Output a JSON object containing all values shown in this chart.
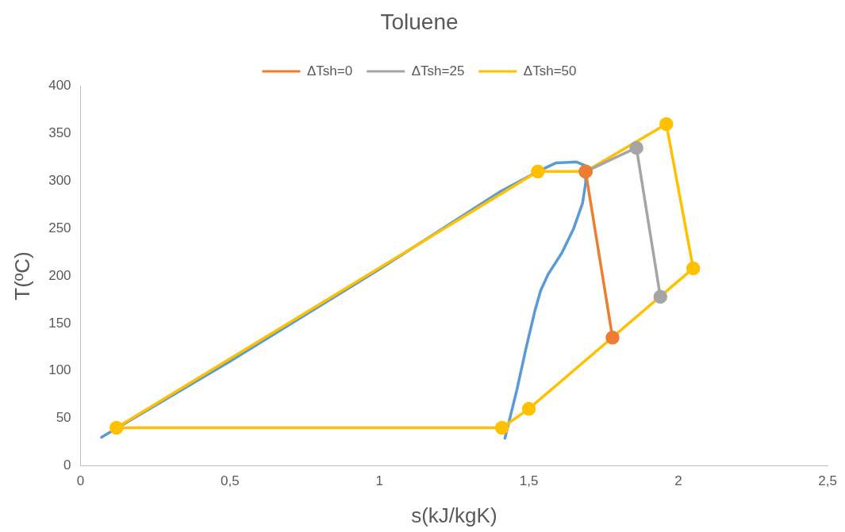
{
  "chart_data": {
    "type": "line",
    "title": "Toluene",
    "xlabel": "s(kJ/kgK)",
    "ylabel": "T(ºC)",
    "xlim": [
      0,
      2.5
    ],
    "xticks": [
      0,
      {
        "value": 0.5,
        "label": "0,5"
      },
      1,
      {
        "value": 1.5,
        "label": "1,5"
      },
      2,
      {
        "value": 2.5,
        "label": "2,5"
      }
    ],
    "ylim": [
      0,
      400
    ],
    "yticks": [
      0,
      50,
      100,
      150,
      200,
      250,
      300,
      350,
      400
    ],
    "grid": false,
    "legend": "top",
    "marker": "circle",
    "line_style": "solid",
    "series": [
      {
        "name": "ΔTsh=0",
        "color": "#ed7d31",
        "x": [
          1.69,
          1.78
        ],
        "values": [
          310,
          135
        ]
      },
      {
        "name": "ΔTsh=25",
        "color": "#a5a5a5",
        "x": [
          1.69,
          1.86,
          1.94
        ],
        "values": [
          310,
          335,
          178
        ]
      },
      {
        "name": "ΔTsh=50",
        "color": "#ffc000",
        "x": [
          1.5,
          1.41,
          0.12,
          1.53,
          1.69,
          1.96,
          2.05
        ],
        "values": [
          60,
          40,
          40,
          310,
          310,
          360,
          208
        ]
      },
      {
        "color": "#ffc000",
        "marker": "none",
        "x": [
          2.05,
          1.5
        ],
        "values": [
          208,
          60
        ]
      },
      {
        "color": "#5b9bd5",
        "marker": "none",
        "x": [
          0.07,
          0.5,
          1.0,
          1.4,
          1.53,
          1.59,
          1.66,
          1.69,
          1.69,
          1.68,
          1.65,
          1.61,
          1.565,
          1.54,
          1.52,
          1.49,
          1.46,
          1.42
        ],
        "values": [
          30,
          110,
          207,
          288,
          310,
          319,
          320,
          316,
          298,
          277,
          250,
          224,
          202,
          185,
          163,
          123,
          80,
          29
        ]
      }
    ]
  }
}
